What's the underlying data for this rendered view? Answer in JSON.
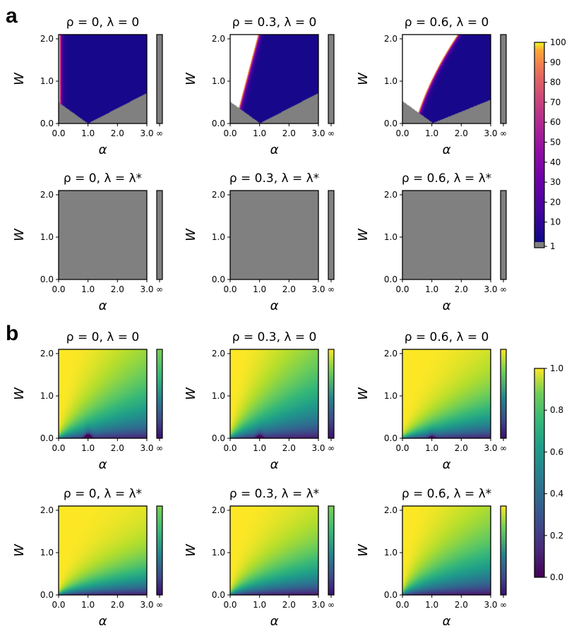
{
  "figure": {
    "panel_labels": [
      "a",
      "b"
    ]
  },
  "chart_data": [
    {
      "id": "a",
      "type": "heatmap",
      "colormap": "plasma",
      "xlabel": "α",
      "ylabel": "W",
      "xlim": [
        0,
        3.0
      ],
      "ylim": [
        0,
        2.1
      ],
      "xticks": [
        "0.0",
        "1.0",
        "2.0",
        "3.0"
      ],
      "yticks": [
        "0.0",
        "1.0",
        "2.0"
      ],
      "side_tick": "∞",
      "colorbar": {
        "ticks": [
          "1",
          "10",
          "20",
          "30",
          "40",
          "50",
          "60",
          "70",
          "80",
          "90",
          "100"
        ],
        "range": [
          1,
          100
        ],
        "overflow_color": "#808080"
      },
      "panels": [
        {
          "title": "ρ = 0, λ = 0",
          "kind": "a_row1",
          "rho": 0,
          "lambda": "0"
        },
        {
          "title": "ρ = 0.3, λ = 0",
          "kind": "a_row1",
          "rho": 0.3,
          "lambda": "0"
        },
        {
          "title": "ρ = 0.6, λ = 0",
          "kind": "a_row1",
          "rho": 0.6,
          "lambda": "0"
        },
        {
          "title": "ρ = 0, λ = λ*",
          "kind": "a_row2",
          "rho": 0,
          "lambda": "λ*"
        },
        {
          "title": "ρ = 0.3, λ = λ*",
          "kind": "a_row2",
          "rho": 0.3,
          "lambda": "λ*"
        },
        {
          "title": "ρ = 0.6, λ = λ*",
          "kind": "a_row2",
          "rho": 0.6,
          "lambda": "λ*"
        }
      ]
    },
    {
      "id": "b",
      "type": "heatmap",
      "colormap": "viridis",
      "xlabel": "α",
      "ylabel": "W",
      "xlim": [
        0,
        3.0
      ],
      "ylim": [
        0,
        2.1
      ],
      "xticks": [
        "0.0",
        "1.0",
        "2.0",
        "3.0"
      ],
      "yticks": [
        "0.0",
        "1.0",
        "2.0"
      ],
      "side_tick": "∞",
      "colorbar": {
        "ticks": [
          "0.0",
          "0.2",
          "0.4",
          "0.6",
          "0.8",
          "1.0"
        ],
        "range": [
          0,
          1
        ]
      },
      "panels": [
        {
          "title": "ρ = 0, λ = 0",
          "kind": "b",
          "rho": 0,
          "lambda": "0"
        },
        {
          "title": "ρ = 0.3, λ = 0",
          "kind": "b",
          "rho": 0.3,
          "lambda": "0"
        },
        {
          "title": "ρ = 0.6, λ = 0",
          "kind": "b",
          "rho": 0.6,
          "lambda": "0"
        },
        {
          "title": "ρ = 0, λ = λ*",
          "kind": "b",
          "rho": 0,
          "lambda": "λ*"
        },
        {
          "title": "ρ = 0.3, λ = λ*",
          "kind": "b",
          "rho": 0.3,
          "lambda": "λ*"
        },
        {
          "title": "ρ = 0.6, λ = λ*",
          "kind": "b",
          "rho": 0.6,
          "lambda": "λ*"
        }
      ]
    }
  ]
}
